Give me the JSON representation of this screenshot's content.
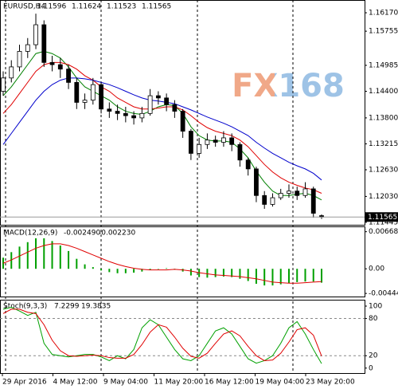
{
  "chart_data": [
    {
      "type": "candlestick",
      "title": "EURUSD,H4",
      "watermark": "FX168",
      "open": [
        1.144,
        1.147,
        1.1495,
        1.153,
        1.1545,
        1.159,
        1.1505,
        1.15,
        1.149,
        1.146,
        1.1415,
        1.142,
        1.1455,
        1.14,
        1.1395,
        1.139,
        1.1385,
        1.138,
        1.139,
        1.143,
        1.1425,
        1.141,
        1.1395,
        1.135,
        1.13,
        1.132,
        1.133,
        1.1325,
        1.1335,
        1.132,
        1.1285,
        1.1265,
        1.1205,
        1.1185,
        1.12,
        1.121,
        1.1215,
        1.1205,
        1.122,
        1.11596
      ],
      "high": [
        1.1485,
        1.151,
        1.1545,
        1.156,
        1.1615,
        1.16,
        1.152,
        1.1515,
        1.15,
        1.147,
        1.1435,
        1.147,
        1.146,
        1.1415,
        1.141,
        1.1405,
        1.1395,
        1.1405,
        1.1445,
        1.144,
        1.1435,
        1.142,
        1.14,
        1.1355,
        1.1335,
        1.1345,
        1.134,
        1.135,
        1.1345,
        1.1325,
        1.129,
        1.127,
        1.1215,
        1.121,
        1.122,
        1.123,
        1.1225,
        1.1235,
        1.1225,
        1.11624
      ],
      "low": [
        1.143,
        1.146,
        1.1485,
        1.1515,
        1.1535,
        1.1495,
        1.1485,
        1.147,
        1.1445,
        1.14,
        1.14,
        1.141,
        1.139,
        1.138,
        1.1375,
        1.137,
        1.1365,
        1.137,
        1.1385,
        1.141,
        1.1395,
        1.138,
        1.1335,
        1.1285,
        1.129,
        1.131,
        1.1315,
        1.1315,
        1.1305,
        1.127,
        1.125,
        1.119,
        1.1175,
        1.118,
        1.1195,
        1.12,
        1.1195,
        1.12,
        1.1155,
        1.11523
      ],
      "close": [
        1.147,
        1.1495,
        1.153,
        1.1545,
        1.159,
        1.1505,
        1.15,
        1.149,
        1.146,
        1.1415,
        1.142,
        1.1455,
        1.14,
        1.1395,
        1.139,
        1.1385,
        1.138,
        1.139,
        1.143,
        1.1425,
        1.141,
        1.1395,
        1.135,
        1.13,
        1.132,
        1.133,
        1.1325,
        1.1335,
        1.132,
        1.1285,
        1.1265,
        1.1205,
        1.1185,
        1.12,
        1.121,
        1.1215,
        1.1205,
        1.122,
        1.1165,
        1.11565
      ],
      "up_color": "#ffffff",
      "down_color": "#000000",
      "lines": [
        {
          "color": "#008000",
          "values": [
            1.143,
            1.145,
            1.1475,
            1.15,
            1.1525,
            1.153,
            1.1525,
            1.1515,
            1.1495,
            1.147,
            1.145,
            1.144,
            1.143,
            1.142,
            1.1405,
            1.1395,
            1.139,
            1.1388,
            1.1395,
            1.1405,
            1.141,
            1.1408,
            1.139,
            1.136,
            1.134,
            1.133,
            1.1328,
            1.1328,
            1.1325,
            1.131,
            1.129,
            1.126,
            1.1235,
            1.1215,
            1.1205,
            1.1205,
            1.1208,
            1.121,
            1.1205,
            1.1195
          ]
        },
        {
          "color": "#e00000",
          "values": [
            1.139,
            1.141,
            1.1435,
            1.146,
            1.1485,
            1.15,
            1.1505,
            1.1505,
            1.15,
            1.149,
            1.1475,
            1.1465,
            1.145,
            1.144,
            1.1425,
            1.1415,
            1.1405,
            1.14,
            1.14,
            1.1402,
            1.1405,
            1.1405,
            1.1398,
            1.1385,
            1.137,
            1.1358,
            1.135,
            1.1345,
            1.134,
            1.133,
            1.1315,
            1.1295,
            1.1275,
            1.1258,
            1.1245,
            1.1235,
            1.1228,
            1.1222,
            1.1218,
            1.121
          ]
        },
        {
          "color": "#0000cc",
          "values": [
            1.132,
            1.1345,
            1.137,
            1.1395,
            1.142,
            1.144,
            1.1455,
            1.1465,
            1.147,
            1.147,
            1.1468,
            1.1465,
            1.146,
            1.1455,
            1.1448,
            1.144,
            1.1432,
            1.1425,
            1.142,
            1.1418,
            1.1415,
            1.1412,
            1.1405,
            1.1398,
            1.139,
            1.1382,
            1.1375,
            1.1368,
            1.136,
            1.135,
            1.134,
            1.1325,
            1.1312,
            1.13,
            1.129,
            1.128,
            1.1272,
            1.1265,
            1.1255,
            1.124
          ]
        }
      ],
      "ylim": [
        1.1139,
        1.1644
      ],
      "yticks": [
        {
          "value": 1.1617,
          "label": "1.16170"
        },
        1.15755,
        1.14985,
        {
          "value": 1.144,
          "label": "1.14400"
        },
        {
          "value": 1.138,
          "label": "1.13800"
        },
        1.13215,
        {
          "value": 1.1263,
          "label": "1.12630"
        },
        {
          "value": 1.1203,
          "label": "1.12030"
        },
        1.11445
      ],
      "x_labels": [
        "29 Apr 2016",
        "4 May 12:00",
        "9 May 04:00",
        "11 May 20:00",
        "16 May 12:00",
        "19 May 04:00",
        "23 May 20:00"
      ]
    },
    {
      "type": "macd",
      "title": "MACD(12,26,9)",
      "readings": [
        "-0.002490",
        "-0.002230"
      ],
      "histogram": {
        "color": "#00a000",
        "values": [
          0.002,
          0.003,
          0.004,
          0.0048,
          0.0055,
          0.0055,
          0.005,
          0.0042,
          0.0032,
          0.0018,
          0.0008,
          0.0003,
          -0.0003,
          -0.0006,
          -0.0008,
          -0.0008,
          -0.0007,
          -0.0005,
          -0.0002,
          0.0,
          0.0001,
          0.0,
          -0.0005,
          -0.0012,
          -0.0015,
          -0.0016,
          -0.0015,
          -0.0014,
          -0.0015,
          -0.0018,
          -0.0022,
          -0.0027,
          -0.003,
          -0.003,
          -0.0028,
          -0.0026,
          -0.0024,
          -0.0023,
          -0.0023,
          -0.0025
        ]
      },
      "signal": {
        "color": "#e00000",
        "values": [
          0.001,
          0.0016,
          0.0023,
          0.003,
          0.0037,
          0.0042,
          0.0045,
          0.0045,
          0.0042,
          0.0037,
          0.0031,
          0.0025,
          0.0019,
          0.0013,
          0.0008,
          0.0004,
          0.0001,
          -0.0001,
          -0.0002,
          -0.0002,
          -0.0002,
          -0.0001,
          -0.0002,
          -0.0004,
          -0.0007,
          -0.0009,
          -0.0011,
          -0.0012,
          -0.0013,
          -0.0014,
          -0.0016,
          -0.0018,
          -0.0021,
          -0.0024,
          -0.0025,
          -0.0026,
          -0.0026,
          -0.0025,
          -0.0024,
          -0.0023
        ]
      },
      "ylim": [
        -0.005,
        0.0075
      ],
      "yticks": [
        0.006684,
        {
          "value": 0,
          "label": "0.00"
        },
        -0.00444
      ]
    },
    {
      "type": "stochastic",
      "title": "Stoch(9,3,3)",
      "readings": [
        "7.2299",
        "19.3835"
      ],
      "main": {
        "color": "#00a000",
        "values": [
          95,
          98,
          92,
          85,
          90,
          40,
          22,
          20,
          18,
          20,
          22,
          22,
          18,
          12,
          20,
          15,
          30,
          65,
          78,
          70,
          50,
          30,
          15,
          12,
          20,
          40,
          60,
          65,
          55,
          35,
          15,
          8,
          12,
          20,
          40,
          65,
          75,
          55,
          30,
          7.2
        ]
      },
      "signal": {
        "color": "#e00000",
        "values": [
          88,
          95,
          95,
          90,
          88,
          70,
          45,
          28,
          20,
          19,
          20,
          21,
          20,
          17,
          16,
          16,
          22,
          38,
          58,
          70,
          66,
          50,
          32,
          19,
          16,
          24,
          40,
          55,
          60,
          52,
          35,
          20,
          12,
          13,
          24,
          42,
          62,
          65,
          53,
          19.4
        ]
      },
      "levels": [
        80,
        20
      ],
      "ylim": [
        -8,
        109
      ],
      "yticks": [
        100,
        80,
        20,
        0
      ]
    }
  ]
}
